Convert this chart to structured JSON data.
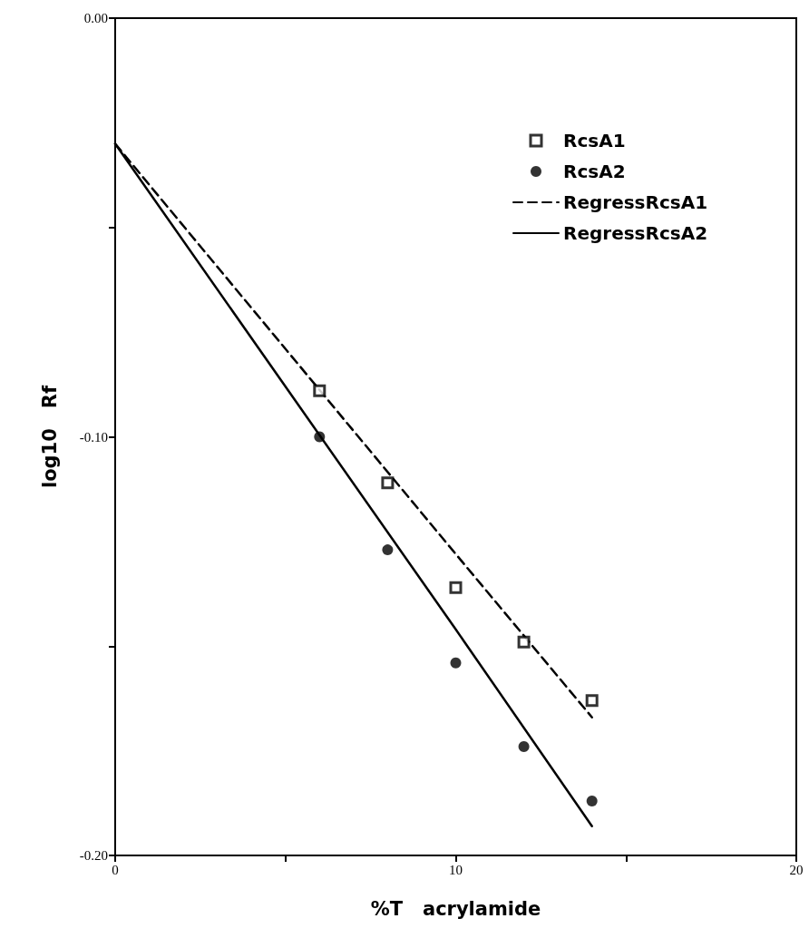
{
  "chart_data": {
    "type": "scatter",
    "xlabel": "%T   acrylamide",
    "ylabel": "log10   Rf",
    "xlim": [
      0,
      20
    ],
    "xticks": [
      0,
      {
        "value": 5,
        "label": null
      },
      10,
      {
        "value": 15,
        "label": null
      },
      20
    ],
    "ylim": [
      -0.2,
      0
    ],
    "yticks": [
      {
        "value": 0,
        "label": "0.00"
      },
      {
        "value": -0.05,
        "label": null
      },
      {
        "value": -0.1,
        "label": "-0.10"
      },
      {
        "value": -0.15,
        "label": null
      },
      {
        "value": -0.2,
        "label": "-0.20"
      }
    ],
    "grid": false,
    "legend": "top right",
    "series": [
      {
        "name": "RcsA1",
        "type": "scatter",
        "marker": "square",
        "color": "#000000",
        "x": [
          6,
          8,
          10,
          12,
          14
        ],
        "values": [
          -0.089,
          -0.111,
          -0.136,
          -0.149,
          -0.163
        ]
      },
      {
        "name": "RcsA2",
        "type": "scatter",
        "marker": "circle",
        "color": "#000000",
        "x": [
          6,
          8,
          10,
          12,
          14
        ],
        "values": [
          -0.1,
          -0.127,
          -0.154,
          -0.174,
          -0.187
        ]
      },
      {
        "name": "RegressRcsA1",
        "type": "line",
        "line_style": "dashed",
        "marker": "none",
        "color": "#000000",
        "x": [
          0,
          10,
          14
        ],
        "values": [
          -0.03,
          -0.128,
          -0.167
        ]
      },
      {
        "name": "RegressRcsA2",
        "type": "line",
        "line_style": "solid",
        "marker": "none",
        "color": "#000000",
        "x": [
          0,
          10,
          14
        ],
        "values": [
          -0.03,
          -0.146,
          -0.193
        ]
      }
    ]
  }
}
